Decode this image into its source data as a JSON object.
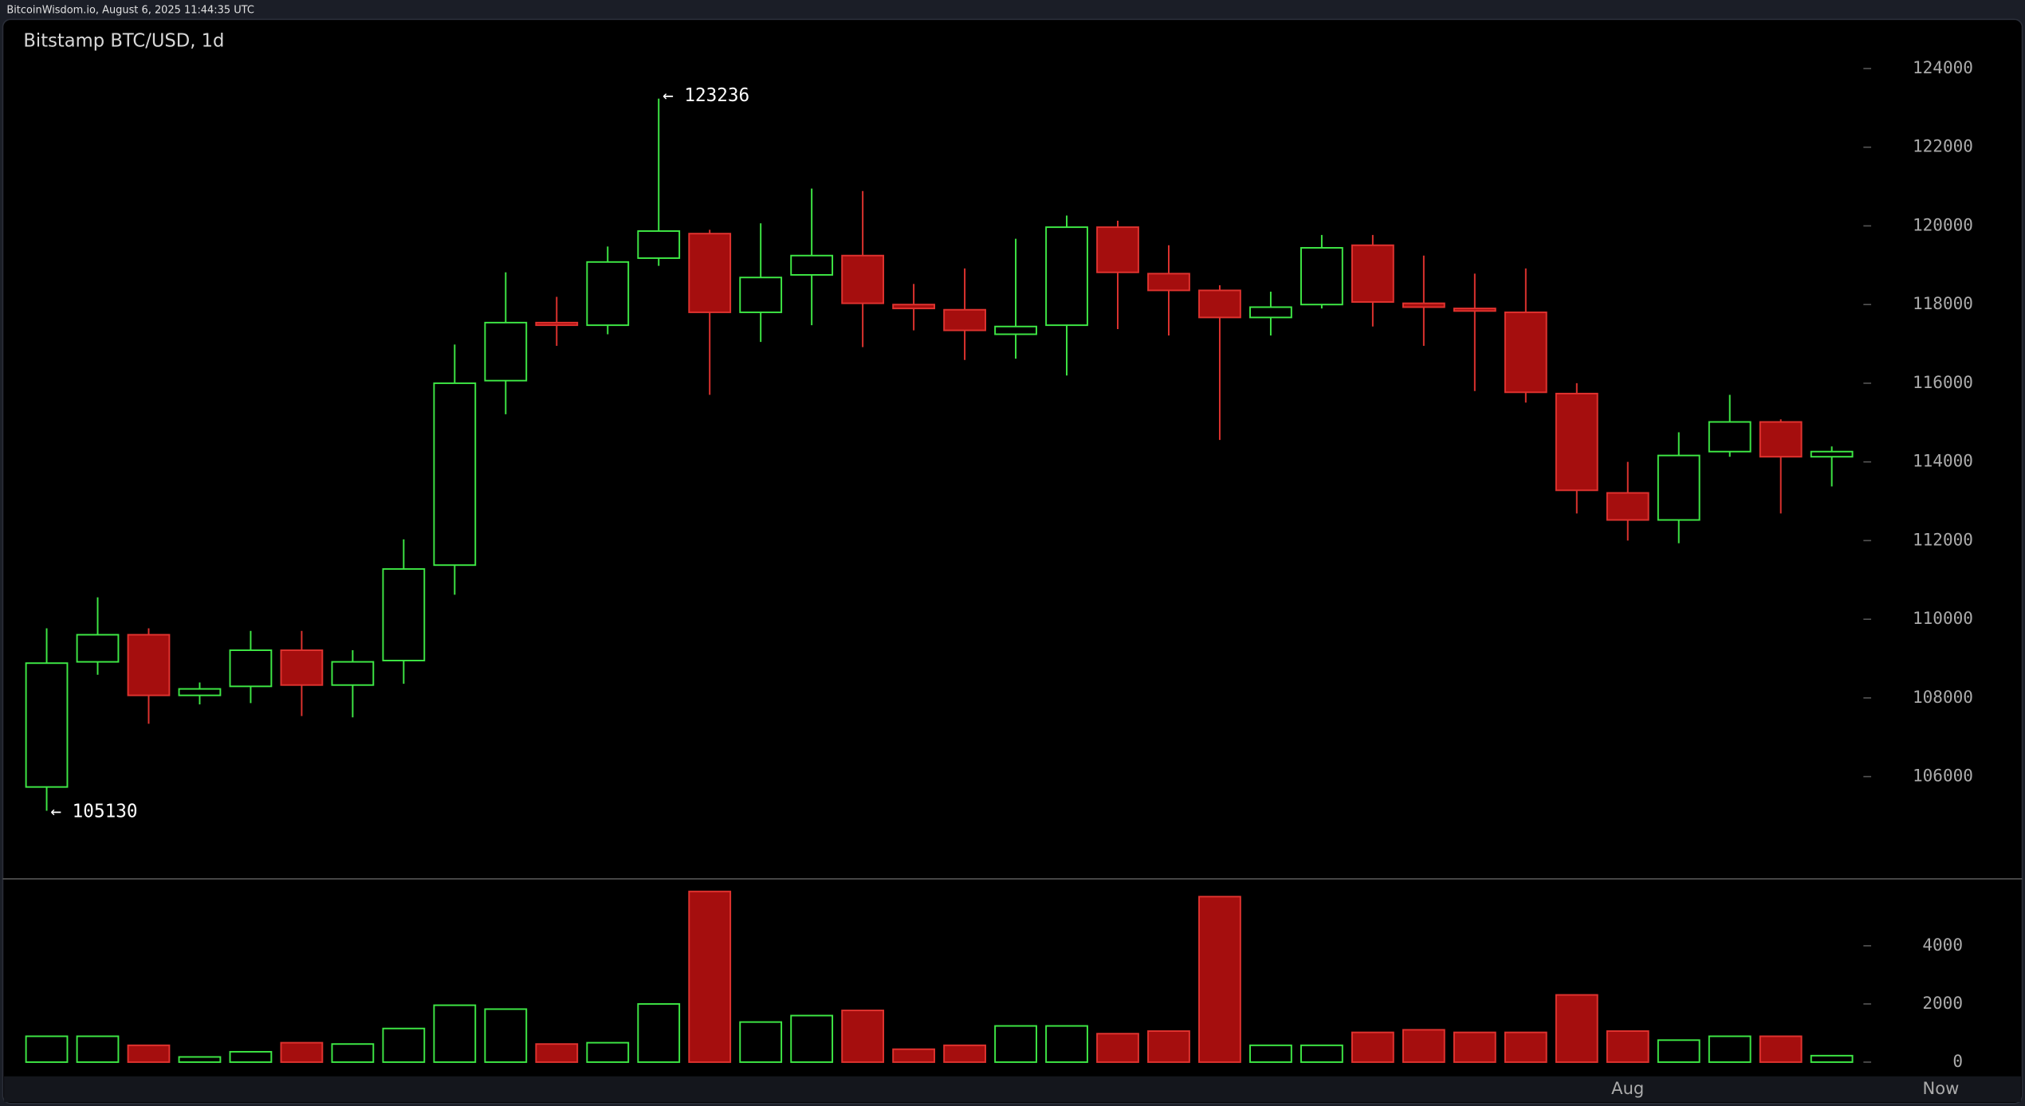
{
  "header": "BitcoinWisdom.io, August 6, 2025 11:44:35 UTC",
  "chart_data": {
    "type": "candlestick",
    "title": "Bitstamp BTC/USD, 1d",
    "categories": [
      null,
      null,
      null,
      null,
      null,
      null,
      null,
      null,
      null,
      null,
      null,
      null,
      null,
      null,
      null,
      null,
      null,
      null,
      null,
      null,
      null,
      null,
      null,
      null,
      null,
      null,
      null,
      null,
      null,
      null,
      null,
      "Aug",
      null,
      null,
      null,
      null
    ],
    "now_label": "Now",
    "open": [
      105736,
      108917,
      109606,
      108065,
      108294,
      109212,
      108327,
      108950,
      111376,
      116066,
      117541,
      117475,
      119180,
      119803,
      117803,
      118754,
      119245,
      118000,
      117868,
      117245,
      117475,
      119967,
      118786,
      118360,
      117672,
      118000,
      119508,
      118032,
      117901,
      117803,
      115737,
      113212,
      112524,
      114262,
      115016,
      114131
    ],
    "high": [
      109770,
      110557,
      109770,
      108392,
      109704,
      109704,
      109212,
      112032,
      116984,
      118819,
      118196,
      119475,
      123236,
      119901,
      120065,
      120950,
      120885,
      118524,
      118918,
      119672,
      120262,
      120131,
      119508,
      118491,
      118327,
      119770,
      119770,
      119245,
      118786,
      118918,
      116000,
      114000,
      114754,
      115704,
      115081,
      114393
    ],
    "low": [
      105130,
      108589,
      107343,
      107835,
      107868,
      107540,
      107507,
      108360,
      110623,
      115212,
      116950,
      117245,
      118983,
      115704,
      117049,
      117475,
      116918,
      117344,
      116590,
      116623,
      116196,
      117376,
      117213,
      114557,
      117213,
      117901,
      117442,
      116950,
      115802,
      115507,
      112688,
      112000,
      111933,
      114131,
      112688,
      113376
    ],
    "close": [
      108884,
      109606,
      108065,
      108229,
      109212,
      108327,
      108917,
      111277,
      116000,
      117541,
      117475,
      119082,
      119868,
      117803,
      118688,
      119245,
      118032,
      117901,
      117344,
      117442,
      119967,
      118819,
      118360,
      117672,
      117934,
      119442,
      118065,
      117934,
      117836,
      115770,
      113278,
      112524,
      114163,
      115016,
      114131,
      114262
    ],
    "volume": [
      889,
      889,
      578,
      178,
      356,
      667,
      622,
      1156,
      1956,
      1822,
      622,
      667,
      2000,
      5867,
      1378,
      1600,
      1778,
      444,
      578,
      1244,
      1244,
      978,
      1067,
      5689,
      578,
      578,
      1022,
      1111,
      1022,
      1022,
      2311,
      1067,
      756,
      889,
      889,
      222
    ],
    "up_color": "#3ee845",
    "down_color": "#a50e0e",
    "ylim": [
      103400,
      125250
    ],
    "yticks": [
      106000,
      108000,
      110000,
      112000,
      114000,
      116000,
      118000,
      120000,
      122000,
      124000
    ],
    "volume_lim": [
      0,
      6300
    ],
    "volume_ticks": [
      0,
      2000,
      4000
    ],
    "annotations": {
      "high": "← 123236",
      "low": "← 105130"
    }
  }
}
